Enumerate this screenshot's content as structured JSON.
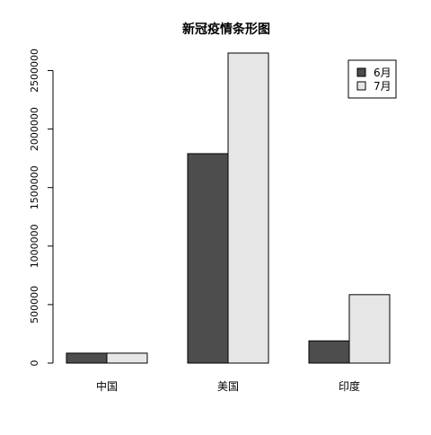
{
  "chart_data": {
    "type": "bar",
    "title": "新冠疫情条形图",
    "xlabel": "",
    "ylabel": "",
    "categories": [
      "中国",
      "美国",
      "印度"
    ],
    "series": [
      {
        "name": "6月",
        "values": [
          85000,
          1790000,
          190000
        ],
        "color": "#4d4d4d"
      },
      {
        "name": "7月",
        "values": [
          85000,
          2650000,
          585000
        ],
        "color": "#e6e6e6"
      }
    ],
    "ylim": [
      0,
      2650000
    ],
    "yticks": [
      0,
      500000,
      1000000,
      1500000,
      2000000,
      2500000
    ],
    "ytick_labels": [
      "0",
      "500000",
      "1000000",
      "1500000",
      "2000000",
      "2500000"
    ],
    "grid": false,
    "legend_position": "top-right",
    "bar_border_color": "#000000"
  }
}
